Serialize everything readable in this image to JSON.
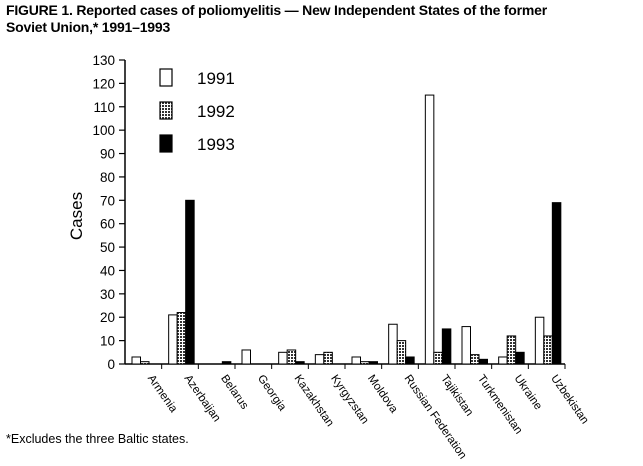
{
  "figure": {
    "title_line1": "FIGURE 1. Reported cases of poliomyelitis — New Independent States of the former",
    "title_line2": "Soviet Union,* 1991–1993",
    "footnote": "*Excludes the three Baltic states."
  },
  "colors": {
    "s1991": "#ffffff",
    "s1992": "#9a9a9a",
    "s1993": "#000000",
    "axis": "#000000"
  },
  "chart_data": {
    "type": "bar",
    "title": "Reported cases of poliomyelitis — New Independent States of the former Soviet Union, 1991–1993",
    "xlabel": "",
    "ylabel": "Cases",
    "ylim": [
      0,
      130
    ],
    "yticks": [
      0,
      10,
      20,
      30,
      40,
      50,
      60,
      70,
      80,
      90,
      100,
      110,
      120,
      130
    ],
    "legend_position": "top-left",
    "categories": [
      "Armenia",
      "Azerbaijan",
      "Belarus",
      "Georgia",
      "Kazakhstan",
      "Kyrgyzstan",
      "Moldova",
      "Russian Federation",
      "Tajikistan",
      "Turkmenistan",
      "Ukraine",
      "Uzbekistan"
    ],
    "series": [
      {
        "name": "1991",
        "values": [
          3,
          21,
          0,
          6,
          5,
          4,
          3,
          17,
          115,
          16,
          3,
          20
        ]
      },
      {
        "name": "1992",
        "values": [
          1,
          22,
          0,
          0,
          6,
          5,
          1,
          10,
          5,
          4,
          12,
          12
        ]
      },
      {
        "name": "1993",
        "values": [
          0,
          70,
          1,
          0,
          1,
          0,
          1,
          3,
          15,
          2,
          5,
          69
        ]
      }
    ]
  }
}
